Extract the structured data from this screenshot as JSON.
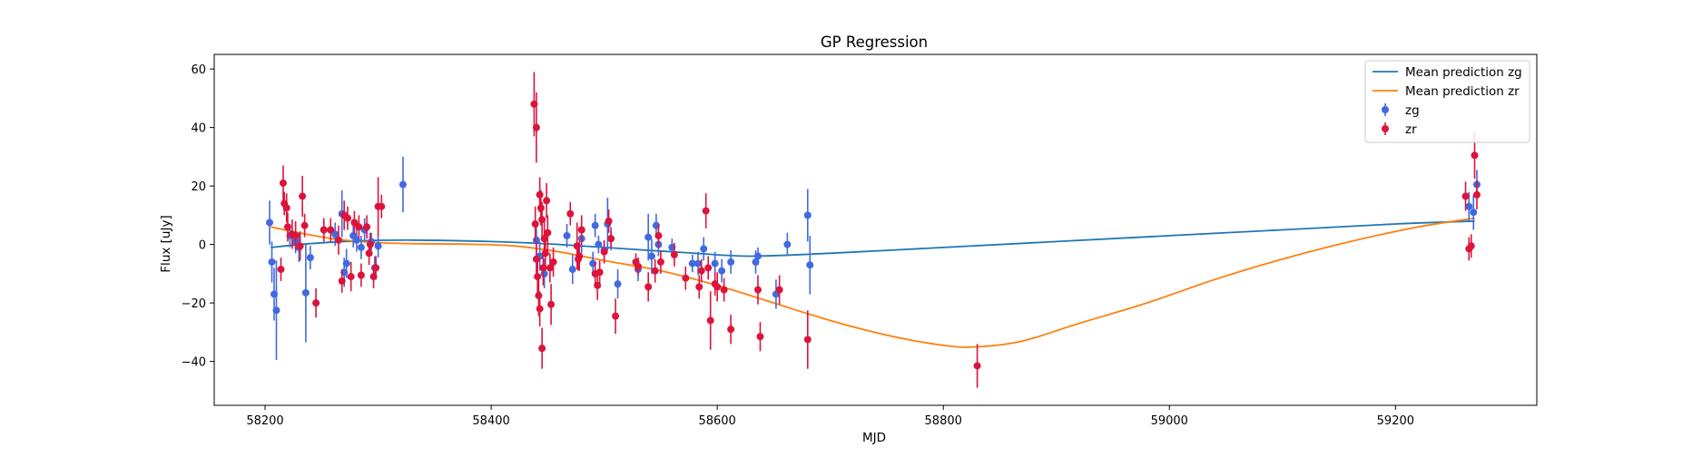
{
  "colors": {
    "zg_line": "#1f77b4",
    "zr_line": "#ff7f0e",
    "zg_points": "#4169e1",
    "zr_points": "#dc143c",
    "background": "#ffffff",
    "axes": "#000000"
  },
  "chart_data": {
    "type": "scatter",
    "title": "GP Regression",
    "xlabel": "MJD",
    "ylabel": "Flux [uJy]",
    "xlim": [
      58155,
      59325
    ],
    "ylim": [
      -55,
      65
    ],
    "xticks": [
      58200,
      58400,
      58600,
      58800,
      59000,
      59200
    ],
    "yticks": [
      -40,
      -20,
      0,
      20,
      40,
      60
    ],
    "grid": false,
    "legend_position": "top-right",
    "legend": [
      {
        "label": "Mean prediction zg",
        "kind": "line",
        "color_key": "zg_line"
      },
      {
        "label": "Mean prediction zr",
        "kind": "line",
        "color_key": "zr_line"
      },
      {
        "label": "zg",
        "kind": "errorbar",
        "color_key": "zg_points"
      },
      {
        "label": "zr",
        "kind": "errorbar",
        "color_key": "zr_points"
      }
    ],
    "lines": [
      {
        "name": "Mean prediction zg",
        "color_key": "zg_line",
        "x": [
          58205,
          58240,
          58280,
          58330,
          58400,
          58460,
          58520,
          58580,
          58630,
          58700,
          58800,
          58900,
          59000,
          59100,
          59200,
          59270
        ],
        "y": [
          -1,
          0.3,
          1.2,
          1.5,
          1,
          0,
          -1.5,
          -3,
          -4,
          -3,
          -1,
          1,
          3,
          5,
          7,
          8
        ]
      },
      {
        "name": "Mean prediction zr",
        "color_key": "zr_line",
        "x": [
          58205,
          58230,
          58260,
          58290,
          58330,
          58380,
          58420,
          58460,
          58500,
          58550,
          58600,
          58650,
          58700,
          58750,
          58800,
          58830,
          58870,
          58920,
          58980,
          59040,
          59100,
          59160,
          59220,
          59270
        ],
        "y": [
          6,
          4,
          2,
          0.8,
          0.3,
          0.1,
          -0.5,
          -2.5,
          -5.5,
          -9,
          -14,
          -20,
          -26,
          -31,
          -34.5,
          -35,
          -33,
          -27,
          -20,
          -12,
          -5,
          1,
          6,
          9
        ]
      }
    ],
    "series": [
      {
        "name": "zg",
        "color_key": "zg_points",
        "points": [
          [
            58204,
            7.5,
            7.5
          ],
          [
            58206,
            -6,
            7
          ],
          [
            58208,
            -17,
            9
          ],
          [
            58210,
            -22.5,
            17
          ],
          [
            58222,
            3,
            4
          ],
          [
            58227,
            1,
            4
          ],
          [
            58230,
            -1,
            5
          ],
          [
            58236,
            -16.5,
            17
          ],
          [
            58240,
            -4.5,
            4
          ],
          [
            58252,
            5,
            3
          ],
          [
            58262,
            3.5,
            4
          ],
          [
            58268,
            10.5,
            8
          ],
          [
            58270,
            -9.5,
            5
          ],
          [
            58272,
            -6.5,
            5
          ],
          [
            58278,
            3,
            4
          ],
          [
            58281,
            1.5,
            4
          ],
          [
            58285,
            -1,
            4
          ],
          [
            58288,
            5,
            4
          ],
          [
            58294,
            1,
            3
          ],
          [
            58297,
            -8,
            4
          ],
          [
            58300,
            -0.5,
            4
          ],
          [
            58322,
            20.5,
            9.5
          ],
          [
            58440,
            1.5,
            5
          ],
          [
            58443,
            -4,
            5
          ],
          [
            58447,
            -10,
            5
          ],
          [
            58467,
            3,
            4
          ],
          [
            58472,
            -8.5,
            5
          ],
          [
            58480,
            2,
            5
          ],
          [
            58490,
            -6.5,
            4
          ],
          [
            58492,
            6.5,
            4
          ],
          [
            58495,
            0,
            3
          ],
          [
            58500,
            -2,
            3
          ],
          [
            58503,
            7,
            9
          ],
          [
            58506,
            2,
            4
          ],
          [
            58512,
            -13.5,
            5
          ],
          [
            58530,
            -8.5,
            4
          ],
          [
            58539,
            2.5,
            8
          ],
          [
            58542,
            -4,
            6
          ],
          [
            58546,
            6.5,
            4
          ],
          [
            58548,
            0,
            4
          ],
          [
            58560,
            -1,
            3
          ],
          [
            58578,
            -6.5,
            3
          ],
          [
            58583,
            -6.5,
            4
          ],
          [
            58588,
            -1.5,
            4
          ],
          [
            58598,
            -6.5,
            4
          ],
          [
            58604,
            -9,
            4
          ],
          [
            58612,
            -6,
            4
          ],
          [
            58634,
            -6,
            4
          ],
          [
            58636,
            -4,
            3
          ],
          [
            58652,
            -17,
            5
          ],
          [
            58662,
            0,
            4
          ],
          [
            58680,
            10,
            9
          ],
          [
            58682,
            -7,
            10
          ],
          [
            59265,
            13,
            5
          ],
          [
            59269,
            11,
            6
          ],
          [
            59272,
            20.5,
            5
          ]
        ]
      },
      {
        "name": "zr",
        "color_key": "zr_points",
        "points": [
          [
            58214,
            -8.5,
            4
          ],
          [
            58216,
            21,
            6
          ],
          [
            58217,
            14,
            4
          ],
          [
            58219,
            12.5,
            5
          ],
          [
            58220,
            6,
            5
          ],
          [
            58224,
            3.5,
            5
          ],
          [
            58227,
            3,
            5
          ],
          [
            58231,
            -0.5,
            5
          ],
          [
            58233,
            16.5,
            7
          ],
          [
            58235,
            6.5,
            4
          ],
          [
            58245,
            -20,
            5
          ],
          [
            58252,
            5,
            4
          ],
          [
            58258,
            5,
            4
          ],
          [
            58265,
            1.5,
            5
          ],
          [
            58268,
            -12.5,
            4
          ],
          [
            58270,
            10,
            5
          ],
          [
            58273,
            9,
            4
          ],
          [
            58276,
            -11,
            5
          ],
          [
            58279,
            7.5,
            4
          ],
          [
            58283,
            6,
            4
          ],
          [
            58285,
            -10.5,
            4
          ],
          [
            58290,
            6,
            4
          ],
          [
            58292,
            -3,
            4
          ],
          [
            58293,
            0,
            4
          ],
          [
            58296,
            -11,
            4
          ],
          [
            58298,
            -8,
            4
          ],
          [
            58300,
            13,
            10
          ],
          [
            58303,
            13,
            4
          ],
          [
            58438,
            48,
            11
          ],
          [
            58440,
            40,
            12
          ],
          [
            58439,
            7,
            6
          ],
          [
            58440,
            -5,
            6
          ],
          [
            58441,
            -11,
            6
          ],
          [
            58442,
            -17.5,
            7
          ],
          [
            58443,
            -22,
            6
          ],
          [
            58443,
            17,
            6
          ],
          [
            58444,
            12.5,
            6
          ],
          [
            58445,
            8.5,
            6
          ],
          [
            58445,
            -35.5,
            7
          ],
          [
            58446,
            -8,
            6
          ],
          [
            58447,
            2,
            6
          ],
          [
            58448,
            -3,
            5
          ],
          [
            58449,
            15,
            6
          ],
          [
            58450,
            4,
            6
          ],
          [
            58452,
            -8,
            5
          ],
          [
            58453,
            -20.5,
            7
          ],
          [
            58455,
            -6,
            5
          ],
          [
            58470,
            10.5,
            4
          ],
          [
            58476,
            -0.5,
            8
          ],
          [
            58477,
            -5,
            4
          ],
          [
            58478,
            -4,
            5
          ],
          [
            58480,
            5,
            5
          ],
          [
            58492,
            -10,
            4
          ],
          [
            58494,
            -14,
            5
          ],
          [
            58496,
            -9.5,
            4
          ],
          [
            58500,
            -2.5,
            4
          ],
          [
            58504,
            8,
            4
          ],
          [
            58506,
            2,
            3
          ],
          [
            58510,
            -24.5,
            6
          ],
          [
            58528,
            -6,
            3
          ],
          [
            58530,
            -7.5,
            3
          ],
          [
            58539,
            -14.5,
            5
          ],
          [
            58545,
            -9,
            4
          ],
          [
            58548,
            3,
            4
          ],
          [
            58550,
            -6,
            4
          ],
          [
            58562,
            -3.5,
            4
          ],
          [
            58572,
            -11.5,
            4
          ],
          [
            58584,
            -14.5,
            4
          ],
          [
            58586,
            -9,
            4
          ],
          [
            58590,
            11.5,
            6
          ],
          [
            58592,
            -8,
            4
          ],
          [
            58594,
            -26,
            10
          ],
          [
            58598,
            -13.5,
            4
          ],
          [
            58600,
            -14.5,
            5
          ],
          [
            58606,
            -15.5,
            4
          ],
          [
            58612,
            -29,
            5
          ],
          [
            58636,
            -15.5,
            5
          ],
          [
            58638,
            -31.5,
            5
          ],
          [
            58655,
            -15.5,
            5
          ],
          [
            58680,
            -32.5,
            10
          ],
          [
            58830,
            -41.5,
            7.5
          ],
          [
            59262,
            16.5,
            5
          ],
          [
            59265,
            -1.5,
            4
          ],
          [
            59267,
            -0.5,
            4
          ],
          [
            59270,
            30.5,
            8
          ],
          [
            59272,
            17,
            5
          ]
        ]
      }
    ]
  }
}
